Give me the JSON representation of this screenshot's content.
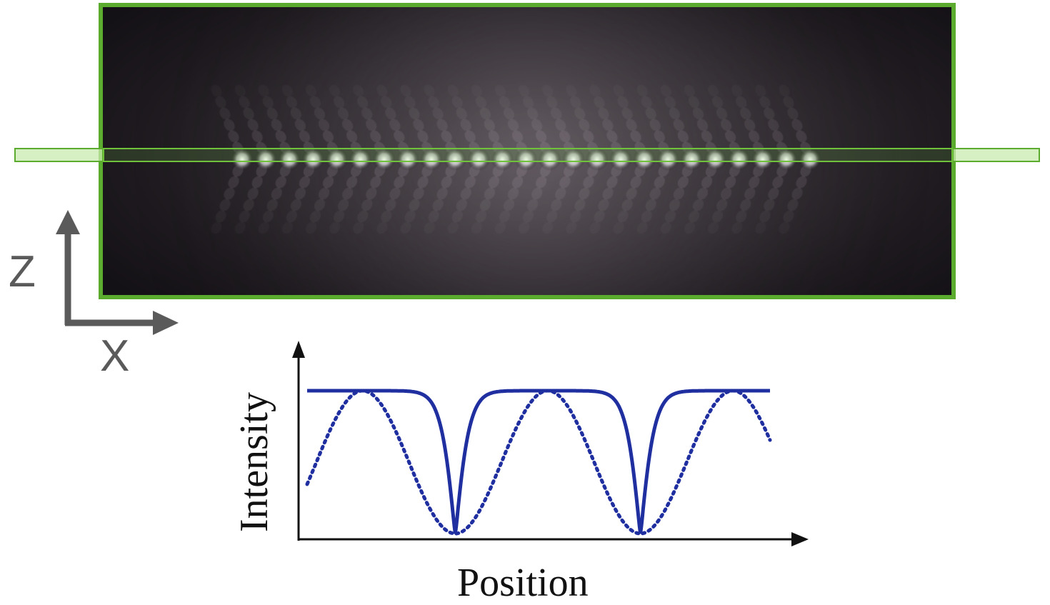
{
  "coordinate_axes": {
    "vertical_label": "Z",
    "horizontal_label": "X",
    "color": "#5a5a5a"
  },
  "image": {
    "frame_color": "#5aab2e",
    "slice_color": "#5aab2e",
    "lattice_sites_visible": 25
  },
  "chart_data": {
    "type": "line",
    "xlabel": "Position",
    "ylabel": "Intensity",
    "line_color": "#1f2fa0",
    "minima_positions": [
      1,
      2
    ],
    "series": [
      {
        "style": "solid",
        "description_shape": "narrow dips"
      },
      {
        "style": "dotted",
        "description_shape": "sinusoidal"
      }
    ]
  }
}
